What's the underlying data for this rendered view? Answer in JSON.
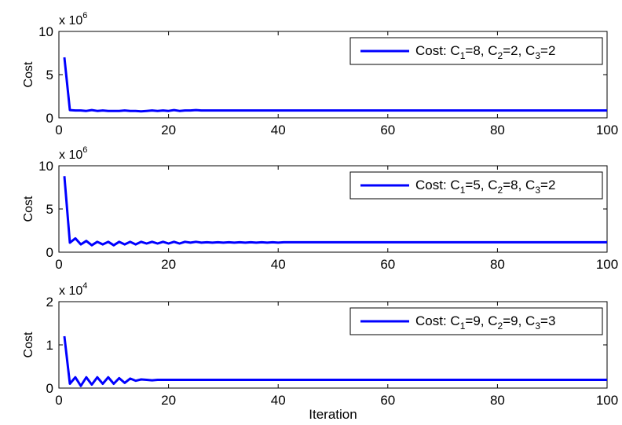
{
  "figure": {
    "xlabel": "Iteration"
  },
  "chart_data": [
    {
      "type": "line",
      "ylabel": "Cost",
      "multiplier": {
        "base": "x 10",
        "exp": "6"
      },
      "xlim": [
        0,
        100
      ],
      "ylim": [
        0,
        10
      ],
      "xticks": [
        "0",
        "20",
        "40",
        "60",
        "80",
        "100"
      ],
      "yticks": [
        "0",
        "5",
        "10"
      ],
      "grid": false,
      "legend_position": "top-right",
      "legend": {
        "prefix": "Cost: ",
        "c1": "8",
        "c2": "2",
        "c3": "2"
      },
      "series": [
        {
          "color": "#0000ff",
          "x": [
            1,
            2,
            3,
            4,
            5,
            6,
            7,
            8,
            9,
            10,
            11,
            12,
            13,
            14,
            15,
            16,
            17,
            18,
            19,
            20,
            21,
            22,
            23,
            24,
            25,
            26,
            27,
            28,
            29,
            30,
            31,
            32,
            33,
            34,
            35,
            36,
            37,
            38,
            39,
            40,
            41,
            42,
            43,
            44,
            45,
            46,
            47,
            48,
            49,
            50,
            51,
            52,
            53,
            54,
            55,
            56,
            57,
            58,
            59,
            60,
            61,
            62,
            63,
            64,
            65,
            66,
            67,
            68,
            69,
            70,
            71,
            72,
            73,
            74,
            75,
            76,
            77,
            78,
            79,
            80,
            81,
            82,
            83,
            84,
            85,
            86,
            87,
            88,
            89,
            90,
            91,
            92,
            93,
            94,
            95,
            96,
            97,
            98,
            99,
            100
          ],
          "y": [
            7.0,
            0.9,
            0.85,
            0.85,
            0.8,
            0.9,
            0.8,
            0.85,
            0.8,
            0.8,
            0.8,
            0.85,
            0.8,
            0.8,
            0.75,
            0.8,
            0.85,
            0.8,
            0.85,
            0.8,
            0.9,
            0.8,
            0.85,
            0.85,
            0.9,
            0.85,
            0.85,
            0.85,
            0.85,
            0.85,
            0.85,
            0.85,
            0.85,
            0.85,
            0.85,
            0.85,
            0.85,
            0.85,
            0.85,
            0.85,
            0.85,
            0.85,
            0.85,
            0.85,
            0.85,
            0.85,
            0.85,
            0.85,
            0.85,
            0.85,
            0.85,
            0.85,
            0.85,
            0.85,
            0.85,
            0.85,
            0.85,
            0.85,
            0.85,
            0.85,
            0.85,
            0.85,
            0.85,
            0.85,
            0.85,
            0.85,
            0.85,
            0.85,
            0.85,
            0.85,
            0.85,
            0.85,
            0.85,
            0.85,
            0.85,
            0.85,
            0.85,
            0.85,
            0.85,
            0.85,
            0.85,
            0.85,
            0.85,
            0.85,
            0.85,
            0.85,
            0.85,
            0.85,
            0.85,
            0.85,
            0.85,
            0.85,
            0.85,
            0.85,
            0.85,
            0.85,
            0.85,
            0.85,
            0.85,
            0.85
          ]
        }
      ]
    },
    {
      "type": "line",
      "ylabel": "Cost",
      "multiplier": {
        "base": "x 10",
        "exp": "6"
      },
      "xlim": [
        0,
        100
      ],
      "ylim": [
        0,
        10
      ],
      "xticks": [
        "0",
        "20",
        "40",
        "60",
        "80",
        "100"
      ],
      "yticks": [
        "0",
        "5",
        "10"
      ],
      "grid": false,
      "legend_position": "top-right",
      "legend": {
        "prefix": "Cost: ",
        "c1": "5",
        "c2": "8",
        "c3": "2"
      },
      "series": [
        {
          "color": "#0000ff",
          "x": [
            1,
            2,
            3,
            4,
            5,
            6,
            7,
            8,
            9,
            10,
            11,
            12,
            13,
            14,
            15,
            16,
            17,
            18,
            19,
            20,
            21,
            22,
            23,
            24,
            25,
            26,
            27,
            28,
            29,
            30,
            31,
            32,
            33,
            34,
            35,
            36,
            37,
            38,
            39,
            40,
            41,
            42,
            43,
            44,
            45,
            46,
            47,
            48,
            49,
            50,
            51,
            52,
            53,
            54,
            55,
            56,
            57,
            58,
            59,
            60,
            61,
            62,
            63,
            64,
            65,
            66,
            67,
            68,
            69,
            70,
            71,
            72,
            73,
            74,
            75,
            76,
            77,
            78,
            79,
            80,
            81,
            82,
            83,
            84,
            85,
            86,
            87,
            88,
            89,
            90,
            91,
            92,
            93,
            94,
            95,
            96,
            97,
            98,
            99,
            100
          ],
          "y": [
            8.8,
            1.1,
            1.6,
            0.9,
            1.3,
            0.8,
            1.2,
            0.9,
            1.2,
            0.8,
            1.2,
            0.9,
            1.2,
            0.9,
            1.2,
            1.0,
            1.2,
            1.0,
            1.2,
            1.0,
            1.2,
            1.0,
            1.2,
            1.1,
            1.2,
            1.1,
            1.15,
            1.1,
            1.15,
            1.1,
            1.15,
            1.1,
            1.15,
            1.1,
            1.15,
            1.1,
            1.15,
            1.1,
            1.15,
            1.1,
            1.15,
            1.15,
            1.15,
            1.15,
            1.15,
            1.15,
            1.15,
            1.15,
            1.15,
            1.15,
            1.15,
            1.15,
            1.15,
            1.15,
            1.15,
            1.15,
            1.15,
            1.15,
            1.15,
            1.15,
            1.15,
            1.15,
            1.15,
            1.15,
            1.15,
            1.15,
            1.15,
            1.15,
            1.15,
            1.15,
            1.15,
            1.15,
            1.15,
            1.15,
            1.15,
            1.15,
            1.15,
            1.15,
            1.15,
            1.15,
            1.15,
            1.15,
            1.15,
            1.15,
            1.15,
            1.15,
            1.15,
            1.15,
            1.15,
            1.15,
            1.15,
            1.15,
            1.15,
            1.15,
            1.15,
            1.15,
            1.15,
            1.15,
            1.15,
            1.15
          ]
        }
      ]
    },
    {
      "type": "line",
      "ylabel": "Cost",
      "multiplier": {
        "base": "x 10",
        "exp": "4"
      },
      "xlim": [
        0,
        100
      ],
      "ylim": [
        0,
        2
      ],
      "xticks": [
        "0",
        "20",
        "40",
        "60",
        "80",
        "100"
      ],
      "yticks": [
        "0",
        "1",
        "2"
      ],
      "grid": false,
      "legend_position": "top-right",
      "legend": {
        "prefix": "Cost: ",
        "c1": "9",
        "c2": "9",
        "c3": "3"
      },
      "series": [
        {
          "color": "#0000ff",
          "x": [
            1,
            2,
            3,
            4,
            5,
            6,
            7,
            8,
            9,
            10,
            11,
            12,
            13,
            14,
            15,
            16,
            17,
            18,
            19,
            20,
            21,
            22,
            23,
            24,
            25,
            26,
            27,
            28,
            29,
            30,
            31,
            32,
            33,
            34,
            35,
            36,
            37,
            38,
            39,
            40,
            41,
            42,
            43,
            44,
            45,
            46,
            47,
            48,
            49,
            50,
            51,
            52,
            53,
            54,
            55,
            56,
            57,
            58,
            59,
            60,
            61,
            62,
            63,
            64,
            65,
            66,
            67,
            68,
            69,
            70,
            71,
            72,
            73,
            74,
            75,
            76,
            77,
            78,
            79,
            80,
            81,
            82,
            83,
            84,
            85,
            86,
            87,
            88,
            89,
            90,
            91,
            92,
            93,
            94,
            95,
            96,
            97,
            98,
            99,
            100
          ],
          "y": [
            1.2,
            0.1,
            0.25,
            0.05,
            0.25,
            0.08,
            0.25,
            0.1,
            0.25,
            0.1,
            0.23,
            0.12,
            0.22,
            0.17,
            0.2,
            0.19,
            0.18,
            0.19,
            0.19,
            0.19,
            0.19,
            0.19,
            0.19,
            0.19,
            0.19,
            0.19,
            0.19,
            0.19,
            0.19,
            0.19,
            0.19,
            0.19,
            0.19,
            0.19,
            0.19,
            0.19,
            0.19,
            0.19,
            0.19,
            0.19,
            0.19,
            0.19,
            0.19,
            0.19,
            0.19,
            0.19,
            0.19,
            0.19,
            0.19,
            0.19,
            0.19,
            0.19,
            0.19,
            0.19,
            0.19,
            0.19,
            0.19,
            0.19,
            0.19,
            0.19,
            0.19,
            0.19,
            0.19,
            0.19,
            0.19,
            0.19,
            0.19,
            0.19,
            0.19,
            0.19,
            0.19,
            0.19,
            0.19,
            0.19,
            0.19,
            0.19,
            0.19,
            0.19,
            0.19,
            0.19,
            0.19,
            0.19,
            0.19,
            0.19,
            0.19,
            0.19,
            0.19,
            0.19,
            0.19,
            0.19,
            0.19,
            0.19,
            0.19,
            0.19,
            0.19,
            0.19,
            0.19,
            0.19,
            0.19,
            0.19
          ]
        }
      ]
    }
  ]
}
